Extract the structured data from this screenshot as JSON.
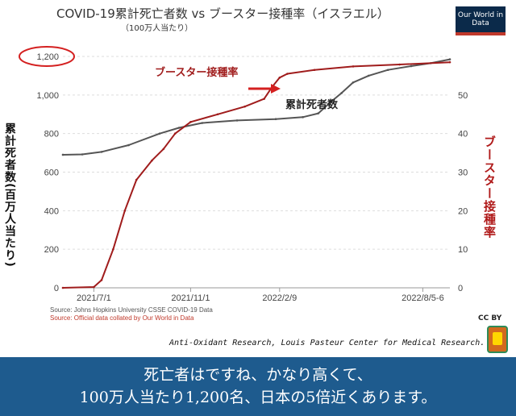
{
  "header": {
    "title": "COVID-19累計死亡者数 vs ブースター接種率（イスラエル）",
    "subtitle": "（100万人当たり）",
    "logo_text": "Our World in Data"
  },
  "chart_data": {
    "type": "line",
    "left_axis_label": "累計死者数(百万人当たり)",
    "right_axis_label": "ブースター接種率",
    "left_ylim": [
      0,
      1200
    ],
    "right_ylim": [
      0,
      60
    ],
    "left_ticks": [
      "0",
      "200",
      "400",
      "600",
      "800",
      "1,000",
      "1,200"
    ],
    "right_ticks": [
      "0",
      "10",
      "20",
      "30",
      "40",
      "50"
    ],
    "x_ticks": [
      "2021/7/1",
      "2021/11/1",
      "2022/2/9",
      "2022/8/5-6"
    ],
    "series": [
      {
        "name": "累計死者数",
        "color": "#555555",
        "axis": "left",
        "points": [
          [
            0,
            690
          ],
          [
            0.05,
            692
          ],
          [
            0.1,
            705
          ],
          [
            0.17,
            740
          ],
          [
            0.25,
            800
          ],
          [
            0.3,
            830
          ],
          [
            0.36,
            855
          ],
          [
            0.45,
            868
          ],
          [
            0.55,
            875
          ],
          [
            0.62,
            885
          ],
          [
            0.66,
            905
          ],
          [
            0.69,
            960
          ],
          [
            0.72,
            1010
          ],
          [
            0.75,
            1065
          ],
          [
            0.79,
            1100
          ],
          [
            0.84,
            1130
          ],
          [
            0.9,
            1150
          ],
          [
            0.95,
            1165
          ],
          [
            1.0,
            1185
          ]
        ]
      },
      {
        "name": "ブースター接種率",
        "color": "#a01c1c",
        "axis": "right",
        "points": [
          [
            0,
            0
          ],
          [
            0.08,
            0.2
          ],
          [
            0.1,
            2
          ],
          [
            0.13,
            10
          ],
          [
            0.16,
            20
          ],
          [
            0.19,
            28
          ],
          [
            0.23,
            33
          ],
          [
            0.26,
            36
          ],
          [
            0.29,
            40
          ],
          [
            0.33,
            43
          ],
          [
            0.4,
            45
          ],
          [
            0.47,
            47
          ],
          [
            0.52,
            49
          ],
          [
            0.54,
            52
          ],
          [
            0.56,
            54.5
          ],
          [
            0.58,
            55.5
          ],
          [
            0.65,
            56.5
          ],
          [
            0.75,
            57.4
          ],
          [
            0.87,
            57.9
          ],
          [
            1.0,
            58.5
          ]
        ]
      }
    ],
    "annotations": {
      "booster_label": "ブースター接種率",
      "deaths_label": "累計死者数",
      "highlight_tick": "1,200"
    },
    "colors": {
      "deaths": "#555555",
      "booster": "#a01c1c",
      "highlight": "#d42020",
      "arrow": "#d42020"
    }
  },
  "footer": {
    "source_line_1": "Source: Johns Hopkins University CSSE COVID-19 Data",
    "source_line_2": "Source: Official data collated by Our World in Data",
    "license": "CC BY",
    "credit": "Anti-Oxidant Research, Louis Pasteur Center for Medical Research.",
    "caption_line_1": "死亡者はですね、かなり高くて、",
    "caption_line_2": "100万人当たり1,200名、日本の5倍近くあります。"
  }
}
